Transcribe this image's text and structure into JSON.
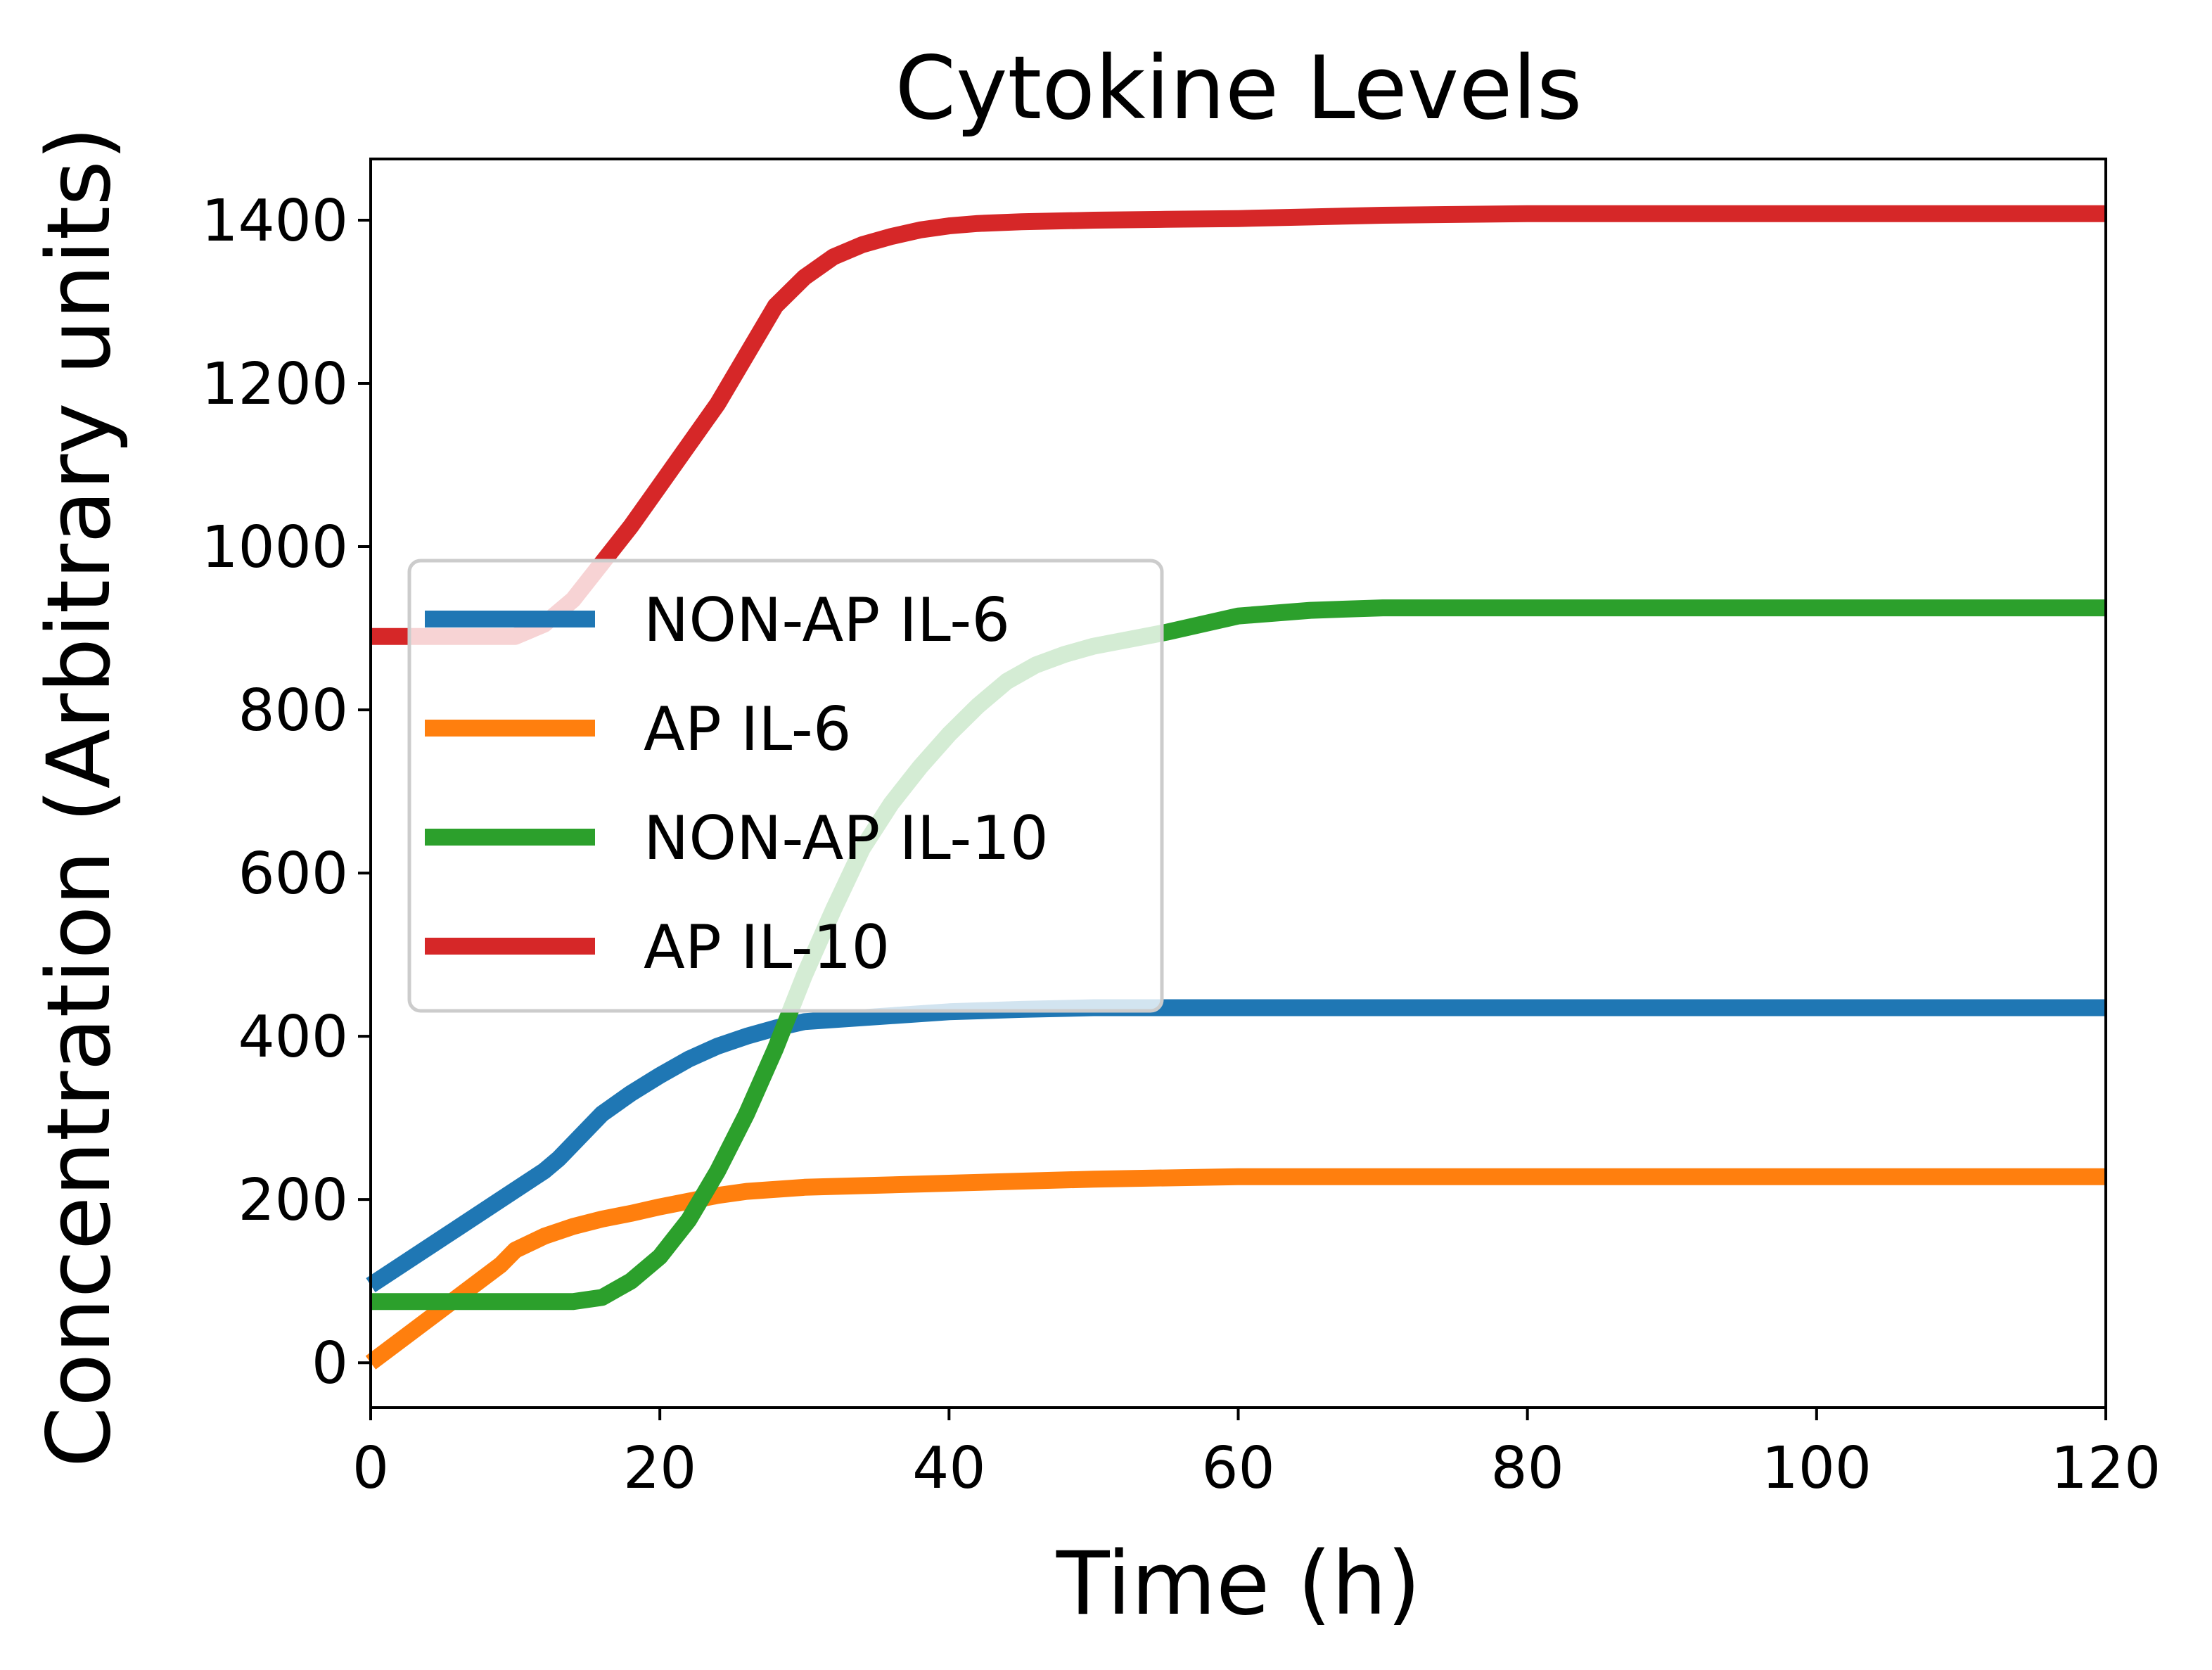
{
  "chart_data": {
    "type": "line",
    "title": "Cytokine Levels",
    "xlabel": "Time (h)",
    "ylabel": "Concentration (Arbitrary units)",
    "xlim": [
      0,
      120
    ],
    "ylim": [
      -55,
      1475
    ],
    "xticks": [
      0,
      20,
      40,
      60,
      80,
      100,
      120
    ],
    "yticks": [
      0,
      200,
      400,
      600,
      800,
      1000,
      1200,
      1400
    ],
    "grid": false,
    "legend_position": "center-left",
    "series": [
      {
        "name": "NON-AP IL-6",
        "color": "#1f77b4",
        "x": [
          0,
          3,
          6,
          9,
          12,
          13,
          16,
          18,
          20,
          22,
          24,
          26,
          28,
          30,
          35,
          40,
          45,
          50,
          60,
          80,
          100,
          120
        ],
        "y": [
          95,
          130,
          165,
          200,
          235,
          250,
          305,
          330,
          352,
          372,
          388,
          400,
          410,
          418,
          424,
          430,
          433,
          435,
          435,
          435,
          435,
          435
        ]
      },
      {
        "name": "AP IL-6",
        "color": "#ff7f0e",
        "x": [
          0,
          3,
          6,
          9,
          10,
          12,
          14,
          16,
          18,
          20,
          22,
          24,
          26,
          30,
          40,
          50,
          60,
          80,
          100,
          120
        ],
        "y": [
          0,
          40,
          80,
          120,
          138,
          155,
          167,
          176,
          183,
          191,
          198,
          205,
          210,
          215,
          220,
          225,
          228,
          228,
          228,
          228
        ]
      },
      {
        "name": "NON-AP IL-10",
        "color": "#2ca02c",
        "x": [
          0,
          5,
          10,
          14,
          16,
          18,
          20,
          22,
          24,
          26,
          28,
          30,
          32,
          34,
          36,
          38,
          40,
          42,
          44,
          46,
          48,
          50,
          55,
          60,
          65,
          70,
          80,
          100,
          120
        ],
        "y": [
          75,
          75,
          75,
          75,
          80,
          100,
          130,
          175,
          235,
          305,
          385,
          475,
          555,
          630,
          685,
          730,
          770,
          805,
          835,
          855,
          868,
          878,
          895,
          915,
          922,
          925,
          925,
          925,
          925
        ]
      },
      {
        "name": "AP IL-10",
        "color": "#d62728",
        "x": [
          0,
          5,
          10,
          12,
          14,
          16,
          18,
          20,
          22,
          24,
          26,
          28,
          30,
          32,
          34,
          36,
          38,
          40,
          42,
          45,
          50,
          55,
          60,
          65,
          70,
          80,
          100,
          120
        ],
        "y": [
          890,
          890,
          890,
          905,
          935,
          980,
          1025,
          1075,
          1125,
          1175,
          1235,
          1295,
          1330,
          1355,
          1370,
          1380,
          1388,
          1393,
          1396,
          1398,
          1400,
          1401,
          1402,
          1404,
          1406,
          1408,
          1408,
          1408
        ]
      }
    ]
  }
}
